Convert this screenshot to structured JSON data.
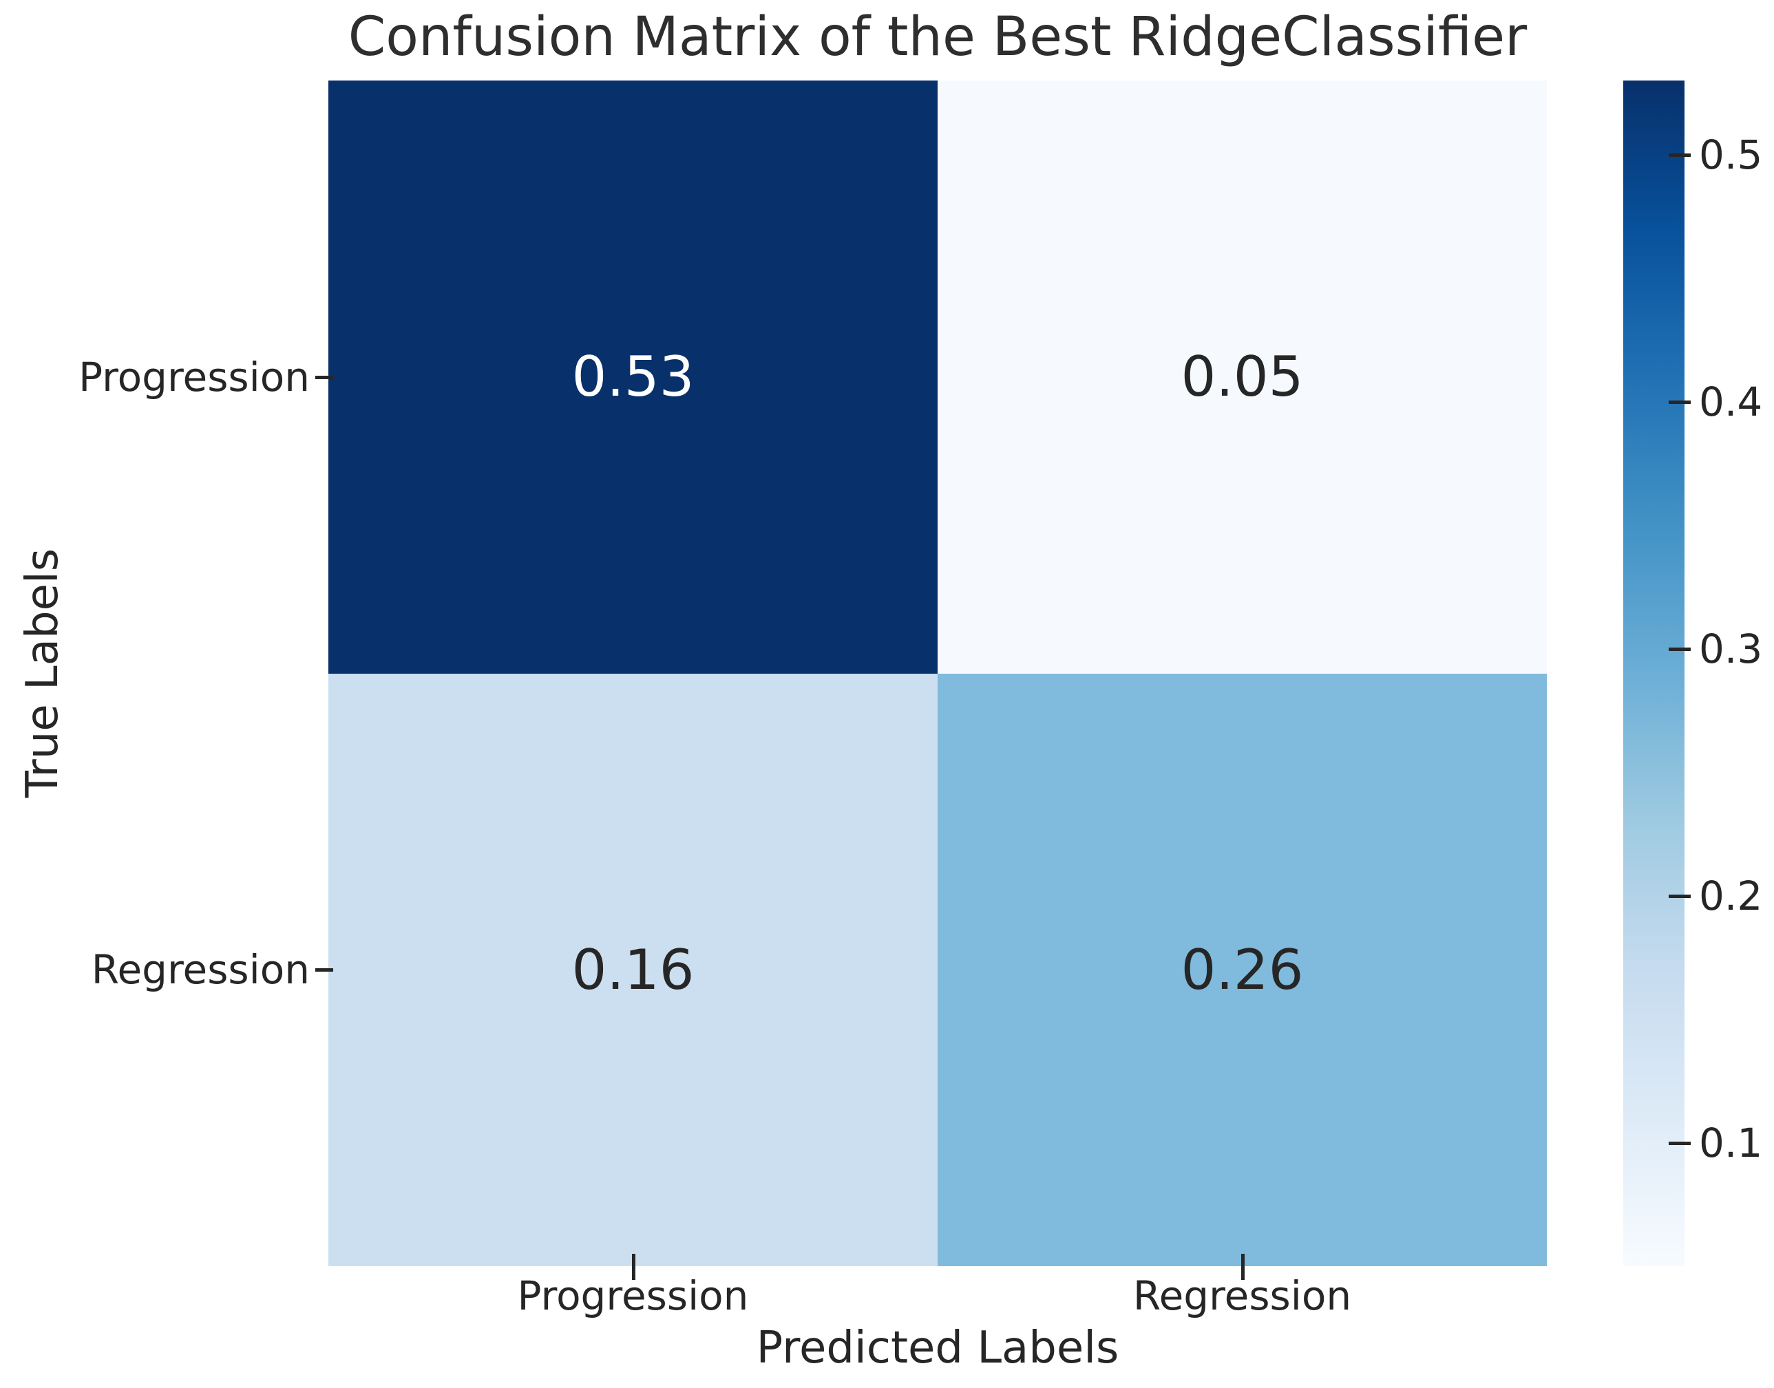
{
  "chart_data": {
    "type": "heatmap",
    "title": "Confusion Matrix of the Best RidgeClassifier",
    "xlabel": "Predicted Labels",
    "ylabel": "True Labels",
    "x_categories": [
      "Progression",
      "Regression"
    ],
    "y_categories": [
      "Progression",
      "Regression"
    ],
    "values": [
      [
        0.53,
        0.05
      ],
      [
        0.16,
        0.26
      ]
    ],
    "cell_labels": [
      [
        "0.53",
        "0.05"
      ],
      [
        "0.16",
        "0.26"
      ]
    ],
    "cell_colors": [
      [
        "#08306b",
        "#f6fafe"
      ],
      [
        "#cbdff0",
        "#80badc"
      ]
    ],
    "cell_text_colors": [
      [
        "#ffffff",
        "#262626"
      ],
      [
        "#262626",
        "#262626"
      ]
    ],
    "colormap": "Blues",
    "vmin": 0.05,
    "vmax": 0.53,
    "grid": false,
    "legend_position": "right-colorbar",
    "colorbar": {
      "tick_values": [
        0.5,
        0.4,
        0.3,
        0.2,
        0.1
      ],
      "tick_labels": [
        "0.5",
        "0.4",
        "0.3",
        "0.2",
        "0.1"
      ],
      "gradient_top_to_bottom": [
        [
          "0%",
          "#08306b"
        ],
        [
          "12.5%",
          "#08519c"
        ],
        [
          "25%",
          "#2171b5"
        ],
        [
          "37.5%",
          "#4292c6"
        ],
        [
          "50%",
          "#6baed6"
        ],
        [
          "62.5%",
          "#9ecae1"
        ],
        [
          "75%",
          "#c6dbef"
        ],
        [
          "87.5%",
          "#deebf7"
        ],
        [
          "100%",
          "#f7fbff"
        ]
      ]
    },
    "colors": {
      "background": "#ffffff",
      "text": "#262626",
      "title_text": "#2e2e2e",
      "darkest_cell": "#08306b",
      "lightest_cell": "#f7fbff"
    }
  }
}
